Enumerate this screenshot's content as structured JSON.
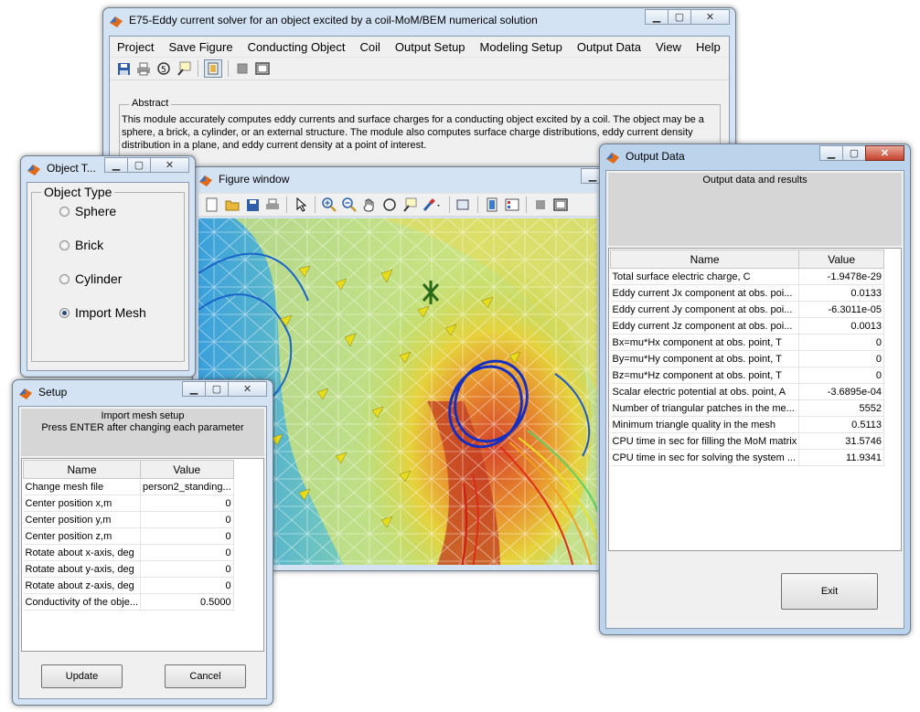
{
  "main_window": {
    "title": "E75-Eddy current solver for an object excited by a coil-MoM/BEM numerical solution",
    "menu": [
      "Project",
      "Save Figure",
      "Conducting Object",
      "Coil",
      "Output Setup",
      "Modeling Setup",
      "Output Data",
      "View",
      "Help"
    ],
    "abstract_label": "Abstract",
    "abstract_text": "This module accurately computes eddy currents and surface charges for a conducting object excited by a coil. The object may be a sphere, a brick, a cylinder, or an external structure. The module also computes surface charge distributions, eddy current density distribution in a plane, and eddy current density at a point of interest."
  },
  "object_type_window": {
    "title": "Object T...",
    "group_label": "Object Type",
    "options": [
      {
        "label": "Sphere",
        "selected": false
      },
      {
        "label": "Brick",
        "selected": false
      },
      {
        "label": "Cylinder",
        "selected": false
      },
      {
        "label": "Import Mesh",
        "selected": true
      }
    ]
  },
  "figure_window": {
    "title": "Figure window"
  },
  "setup_window": {
    "title": "Setup",
    "header_line1": "Import mesh setup",
    "header_line2": "Press ENTER after changing each parameter",
    "columns": [
      "Name",
      "Value"
    ],
    "rows": [
      {
        "name": "Change mesh file",
        "value": "person2_standing..."
      },
      {
        "name": "Center position x,m",
        "value": "0"
      },
      {
        "name": "Center position y,m",
        "value": "0"
      },
      {
        "name": "Center position z,m",
        "value": "0"
      },
      {
        "name": "Rotate about x-axis, deg",
        "value": "0"
      },
      {
        "name": "Rotate about y-axis, deg",
        "value": "0"
      },
      {
        "name": "Rotate about z-axis, deg",
        "value": "0"
      },
      {
        "name": "Conductivity of the obje...",
        "value": "0.5000"
      }
    ],
    "update_label": "Update",
    "cancel_label": "Cancel"
  },
  "output_window": {
    "title": "Output Data",
    "header": "Output data and results",
    "columns": [
      "Name",
      "Value"
    ],
    "rows": [
      {
        "name": "Total surface electric charge, C",
        "value": "-1.9478e-29"
      },
      {
        "name": "Eddy current Jx component at obs. poi...",
        "value": "0.0133"
      },
      {
        "name": "Eddy current Jy component at obs. poi...",
        "value": "-6.3011e-05"
      },
      {
        "name": "Eddy current Jz component at obs. poi...",
        "value": "0.0013"
      },
      {
        "name": "Bx=mu*Hx component at obs. point, T",
        "value": "0"
      },
      {
        "name": "By=mu*Hy component at obs. point, T",
        "value": "0"
      },
      {
        "name": "Bz=mu*Hz component at obs. point, T",
        "value": "0"
      },
      {
        "name": "Scalar electric potential at obs. point, A",
        "value": "-3.6895e-04"
      },
      {
        "name": "Number of triangular patches in the me...",
        "value": "5552"
      },
      {
        "name": "Minimum triangle quality in the mesh",
        "value": "0.5113"
      },
      {
        "name": "CPU time in sec for filling the MoM matrix",
        "value": "31.5746"
      },
      {
        "name": "CPU time in sec for solving the system ...",
        "value": "11.9341"
      }
    ],
    "exit_label": "Exit"
  },
  "icons": {
    "app": "matlab-logo-icon",
    "minimize": "minimize-icon",
    "maximize": "maximize-icon",
    "close": "close-icon"
  }
}
